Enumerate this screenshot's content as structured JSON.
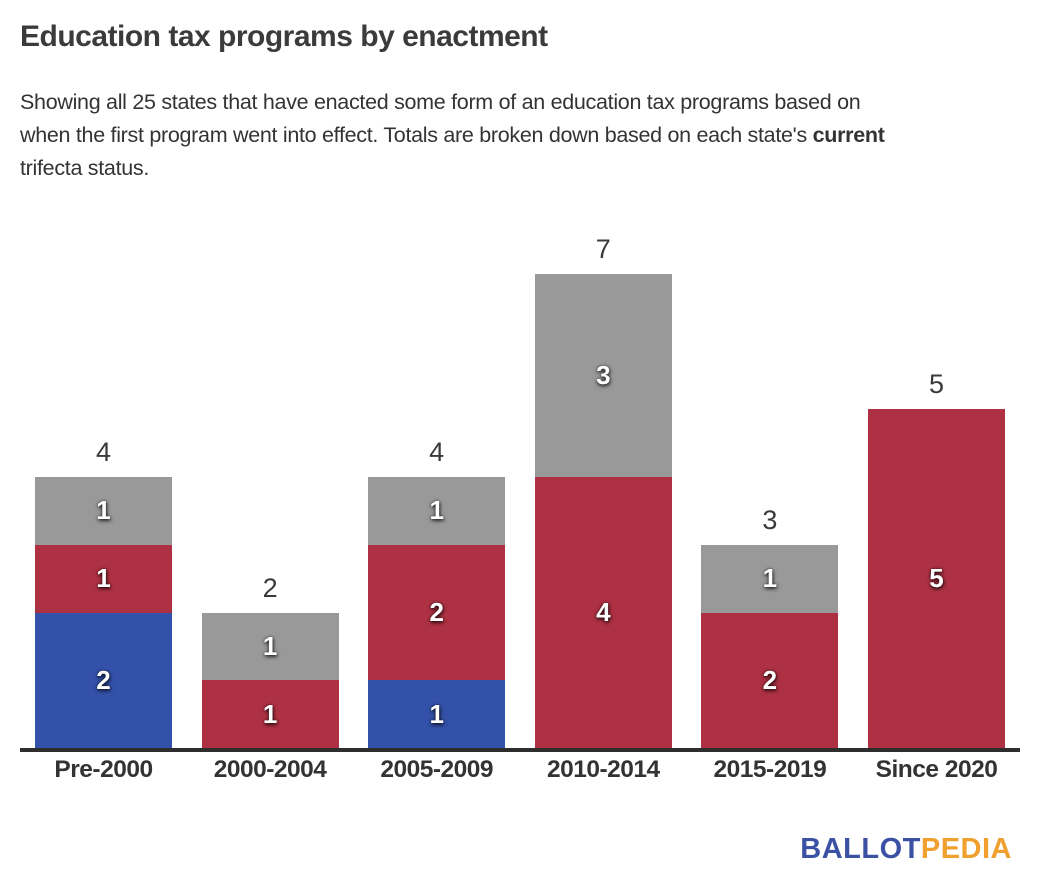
{
  "header": {
    "title": "Education tax programs by enactment",
    "subtitle": {
      "line1": "Showing all 25 states that have enacted some form of an education tax programs based on",
      "line2_pre": "when the first program went into effect. Totals are broken down based on each state's ",
      "line2_bold": "current",
      "line3": "trifecta status."
    }
  },
  "chart_data": {
    "type": "bar",
    "stacked": true,
    "grid": false,
    "legend": "none",
    "categories": [
      "Pre-2000",
      "2000-2004",
      "2005-2009",
      "2010-2014",
      "2015-2019",
      "Since 2020"
    ],
    "series": [
      {
        "name": "blue",
        "color": "#3351a8",
        "values": [
          2,
          0,
          1,
          0,
          0,
          0
        ]
      },
      {
        "name": "red",
        "color": "#ae3143",
        "values": [
          1,
          1,
          2,
          4,
          2,
          5
        ]
      },
      {
        "name": "gray",
        "color": "#999999",
        "values": [
          1,
          1,
          1,
          3,
          1,
          0
        ]
      }
    ],
    "totals": [
      4,
      2,
      4,
      7,
      3,
      5
    ],
    "ylim": [
      0,
      7
    ],
    "colors": {
      "segment_label": "#ffffff",
      "total_label": "#3a3a3a",
      "axis_line": "#2d2d2d"
    }
  },
  "footer": {
    "logo_part1": "BALLOT",
    "logo_part2": "PEDIA",
    "logo_color1": "#3b51a3",
    "logo_color2": "#f0a02f"
  }
}
